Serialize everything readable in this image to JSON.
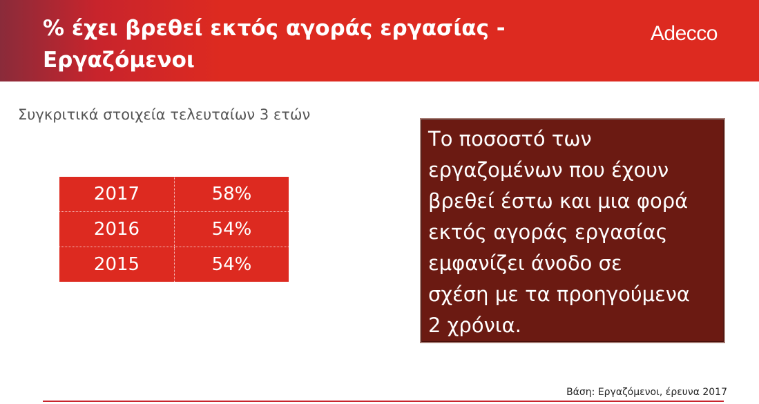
{
  "header": {
    "title": "%  έχει βρεθεί εκτός αγοράς εργασίας -\nΕργαζόμενοι",
    "logo_text": "Adecco",
    "colors": {
      "band": "#dd2a20",
      "band_left": "#8a2b3a"
    }
  },
  "subtitle": "Συγκριτικά στοιχεία τελευταίων 3 ετών",
  "table": {
    "rows": [
      {
        "year": "2017",
        "value": "58%"
      },
      {
        "year": "2016",
        "value": "54%"
      },
      {
        "year": "2015",
        "value": "54%"
      }
    ]
  },
  "callout": {
    "text": "Το ποσοστό των\nεργαζομένων που έχουν\nβρεθεί έστω και μια φορά\nεκτός αγοράς εργασίας\nεμφανίζει άνοδο σε\nσχέση με τα προηγούμενα\n2 χρόνια.",
    "background_color": "#6b1a12"
  },
  "footnote": "Βάση: Εργαζόμενοι, έρευνα 2017"
}
